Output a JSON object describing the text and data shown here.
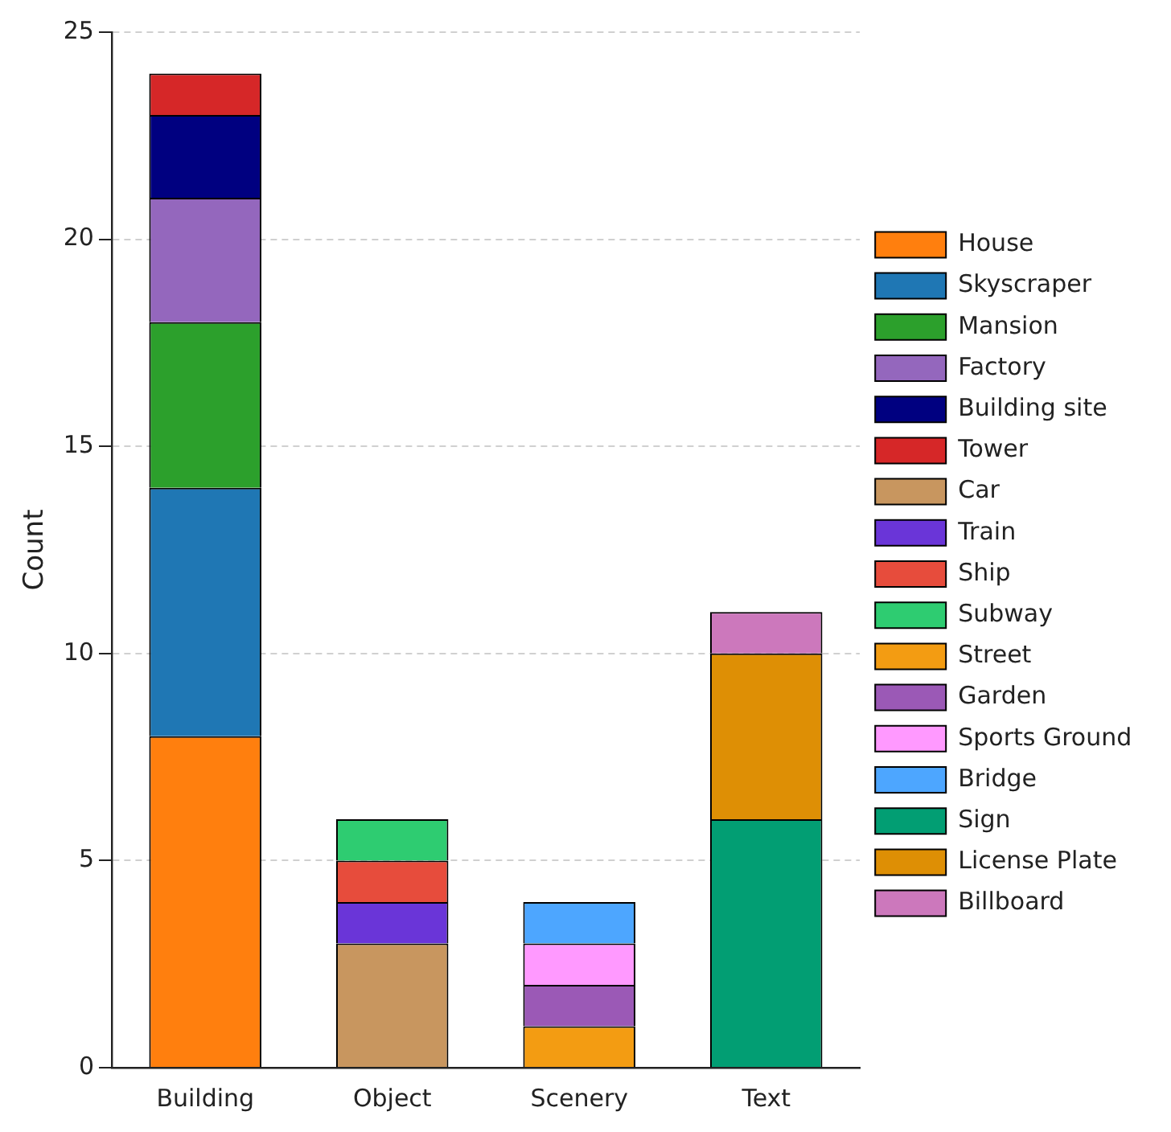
{
  "chart_data": {
    "type": "bar",
    "stacked": true,
    "ylabel": "Count",
    "categories": [
      "Building",
      "Object",
      "Scenery",
      "Text"
    ],
    "ylim": [
      0,
      25
    ],
    "yticks": [
      0,
      5,
      10,
      15,
      20,
      25
    ],
    "grid": "y",
    "legend": "right",
    "series": [
      {
        "name": "House",
        "color": "#ff7f0e",
        "values": [
          8,
          null,
          null,
          null
        ]
      },
      {
        "name": "Skyscraper",
        "color": "#1f77b4",
        "values": [
          6,
          null,
          null,
          null
        ]
      },
      {
        "name": "Mansion",
        "color": "#2ca02c",
        "values": [
          4,
          null,
          null,
          null
        ]
      },
      {
        "name": "Factory",
        "color": "#9467bd",
        "values": [
          3,
          null,
          null,
          null
        ]
      },
      {
        "name": "Building site",
        "color": "#000080",
        "values": [
          2,
          null,
          null,
          null
        ]
      },
      {
        "name": "Tower",
        "color": "#d62728",
        "values": [
          1,
          null,
          null,
          null
        ]
      },
      {
        "name": "Car",
        "color": "#c8965f",
        "values": [
          null,
          3,
          null,
          null
        ]
      },
      {
        "name": "Train",
        "color": "#6a35d8",
        "values": [
          null,
          1,
          null,
          null
        ]
      },
      {
        "name": "Ship",
        "color": "#e74c3c",
        "values": [
          null,
          1,
          null,
          null
        ]
      },
      {
        "name": "Subway",
        "color": "#2ecc71",
        "values": [
          null,
          1,
          null,
          null
        ]
      },
      {
        "name": "Street",
        "color": "#f39c12",
        "values": [
          null,
          null,
          1,
          null
        ]
      },
      {
        "name": "Garden",
        "color": "#9b59b6",
        "values": [
          null,
          null,
          1,
          null
        ]
      },
      {
        "name": "Sports Ground",
        "color": "#ff99ff",
        "values": [
          null,
          null,
          1,
          null
        ]
      },
      {
        "name": "Bridge",
        "color": "#4da6ff",
        "values": [
          null,
          null,
          1,
          null
        ]
      },
      {
        "name": "Sign",
        "color": "#029e73",
        "values": [
          null,
          null,
          null,
          6
        ]
      },
      {
        "name": "License Plate",
        "color": "#de8f05",
        "values": [
          null,
          null,
          null,
          4
        ]
      },
      {
        "name": "Billboard",
        "color": "#cc78bc",
        "values": [
          null,
          null,
          null,
          1
        ]
      }
    ]
  }
}
